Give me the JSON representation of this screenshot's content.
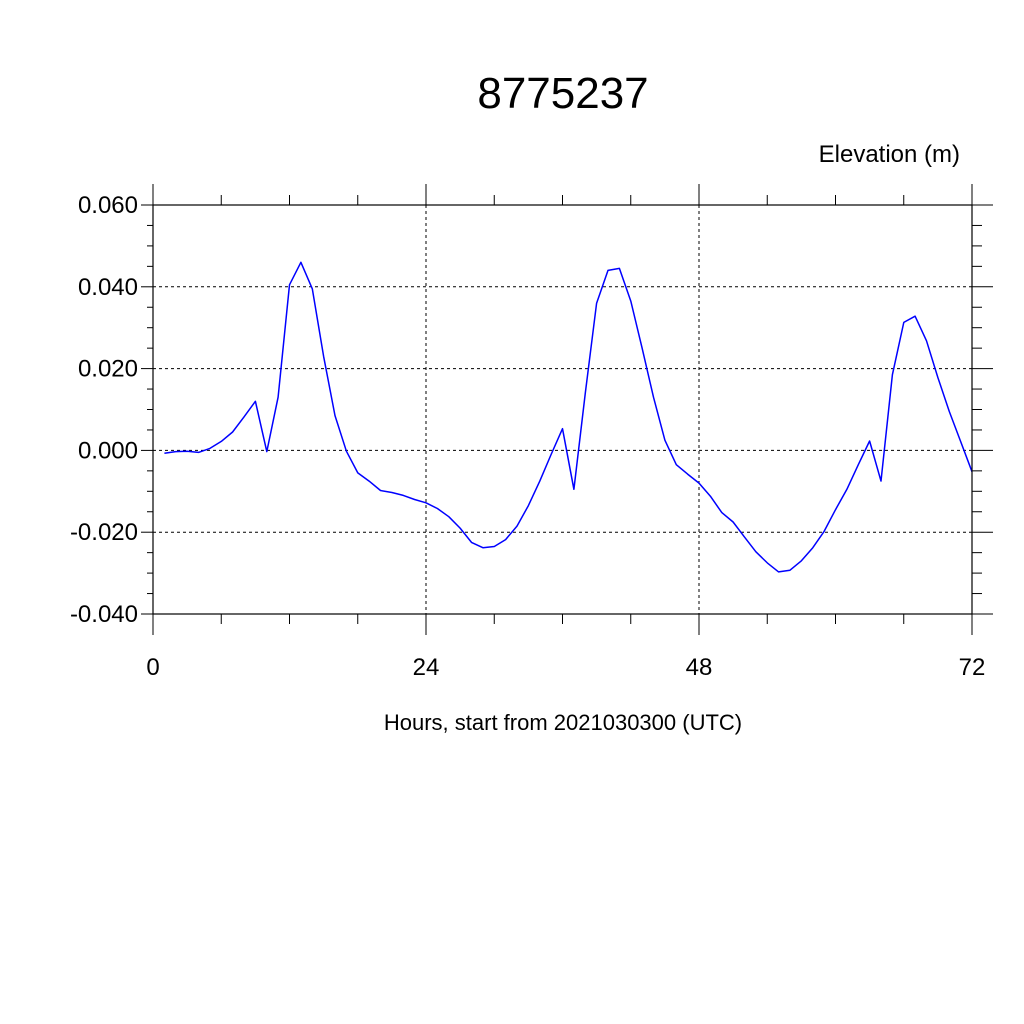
{
  "chart_data": {
    "type": "line",
    "title": "8775237",
    "ylabel": "Elevation (m)",
    "xlabel": "Hours, start from 2021030300 (UTC)",
    "xlim": [
      0,
      72
    ],
    "ylim": [
      -0.04,
      0.06
    ],
    "x_ticks": [
      0,
      24,
      48,
      72
    ],
    "x_tick_labels": [
      "0",
      "24",
      "48",
      "72"
    ],
    "y_ticks": [
      -0.04,
      -0.02,
      0.0,
      0.02,
      0.04,
      0.06
    ],
    "y_tick_labels": [
      "-0.040",
      "-0.020",
      "0.000",
      "0.020",
      "0.040",
      "0.060"
    ],
    "grid": "dashed",
    "line_color": "#0000ff",
    "series": [
      {
        "x": [
          1,
          2,
          3,
          4,
          5,
          6,
          7,
          8,
          9,
          10,
          11,
          12,
          13,
          14,
          15,
          16,
          17,
          18,
          19,
          20,
          21,
          22,
          23,
          24,
          25,
          26,
          27,
          28,
          29,
          30,
          31,
          32,
          33,
          34,
          35,
          36,
          37,
          38,
          39,
          40,
          41,
          42,
          43,
          44,
          45,
          46,
          47,
          48,
          49,
          50,
          51,
          52,
          53,
          54,
          55,
          56,
          57,
          58,
          59,
          60,
          61,
          62,
          63,
          64,
          65,
          66,
          67,
          68,
          69,
          70,
          71,
          72
        ],
        "y": [
          -0.0007,
          -0.0003,
          -0.0002,
          -0.0005,
          0.0005,
          0.0022,
          0.0045,
          0.0082,
          0.012,
          -0.0003,
          0.013,
          0.0405,
          0.046,
          0.0395,
          0.023,
          0.0085,
          -0.0002,
          -0.0055,
          -0.0075,
          -0.0098,
          -0.0103,
          -0.011,
          -0.012,
          -0.0128,
          -0.0142,
          -0.0162,
          -0.019,
          -0.0225,
          -0.0238,
          -0.0235,
          -0.0218,
          -0.0185,
          -0.0135,
          -0.0075,
          -0.001,
          0.0053,
          -0.0095,
          0.014,
          0.036,
          0.044,
          0.0445,
          0.0365,
          0.025,
          0.013,
          0.0025,
          -0.0035,
          -0.0058,
          -0.008,
          -0.0112,
          -0.0152,
          -0.0175,
          -0.0212,
          -0.0248,
          -0.0275,
          -0.0297,
          -0.0293,
          -0.027,
          -0.0238,
          -0.0198,
          -0.0145,
          -0.0095,
          -0.0035,
          0.0023,
          -0.0075,
          0.0185,
          0.0313,
          0.0328,
          0.0268,
          0.0178,
          0.0095,
          0.0022,
          -0.0052
        ]
      }
    ]
  }
}
